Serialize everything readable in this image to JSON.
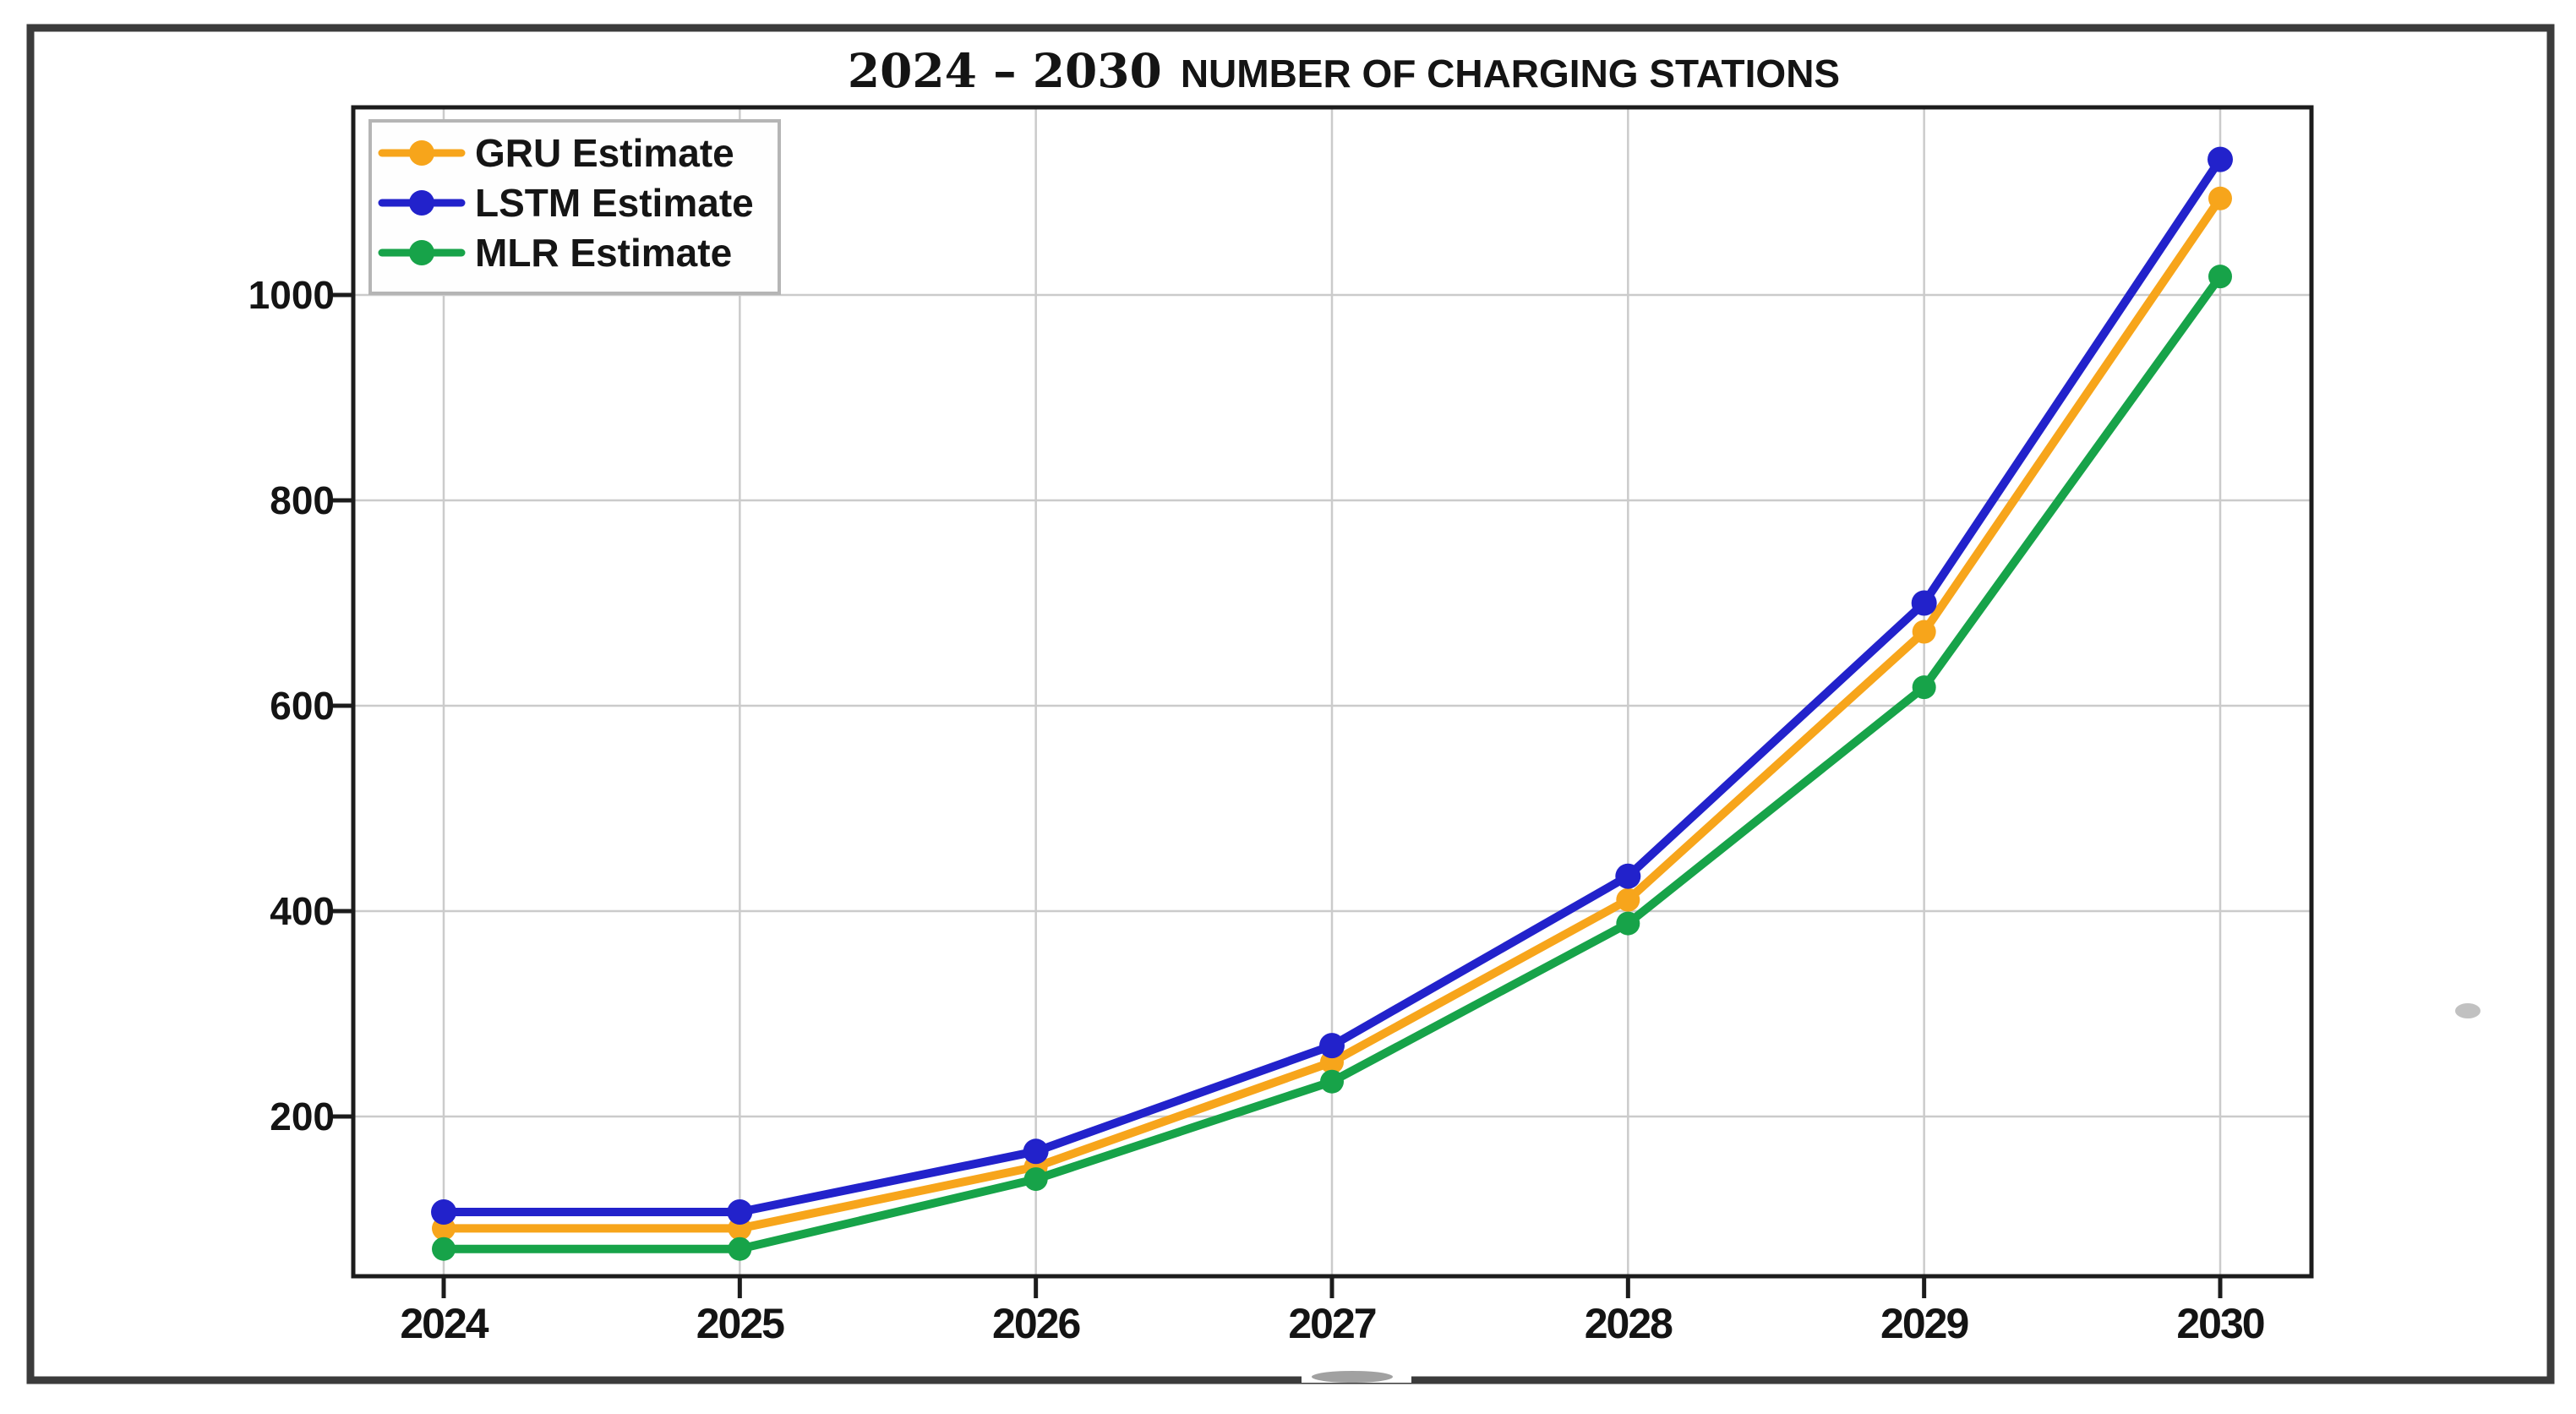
{
  "title": {
    "range": "2024 – 2030",
    "name": "NUMBER OF CHARGING STATIONS"
  },
  "legend": {
    "items": [
      "GRU Estimate",
      "LSTM Estimate",
      "MLR Estimate"
    ]
  },
  "axes": {
    "yticks": [
      "200",
      "400",
      "600",
      "800",
      "1000"
    ],
    "xticks": [
      "2024",
      "2025",
      "2026",
      "2027",
      "2028",
      "2029",
      "2030"
    ]
  },
  "colors": {
    "gru_orange": "#F7A51B",
    "lstm_blue": "#2222CB",
    "mlr_green": "#17A349",
    "grid": "#cbcbcb",
    "spine": "#1c1c1c",
    "outer_border": "#3b3b3b",
    "text": "#141414",
    "legend_border": "#b5b5b5"
  },
  "chart_data": {
    "type": "line",
    "title": "2024 – 2030 NUMBER OF CHARGING STATIONS",
    "x": [
      2024,
      2025,
      2026,
      2027,
      2028,
      2029,
      2030
    ],
    "series": [
      {
        "name": "GRU Estimate",
        "color": "#F7A51B",
        "marker": "circle",
        "values": [
          91,
          91,
          151,
          253,
          411,
          672,
          1094
        ]
      },
      {
        "name": "LSTM Estimate",
        "color": "#2222CB",
        "marker": "circle",
        "values": [
          107,
          107,
          166,
          269,
          434,
          700,
          1132
        ]
      },
      {
        "name": "MLR Estimate",
        "color": "#17A349",
        "marker": "circle",
        "values": [
          71,
          71,
          139,
          234,
          388,
          618,
          1018
        ]
      }
    ],
    "xlabel": "",
    "ylabel": "",
    "ylim": [
      44,
      1183
    ],
    "yticks": [
      200,
      400,
      600,
      800,
      1000
    ],
    "grid": true,
    "legend_position": "upper-left"
  }
}
